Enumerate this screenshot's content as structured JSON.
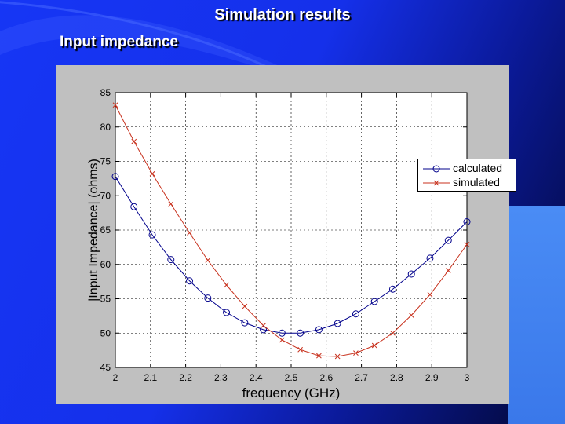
{
  "slide": {
    "title": "Simulation results",
    "subtitle": "Input impedance"
  },
  "colors": {
    "calculated": "#00008b",
    "simulated": "#c8321e",
    "axes_bg": "#ffffff",
    "figure_bg": "#c0c0c0"
  },
  "chart_data": {
    "type": "line",
    "title": "",
    "xlabel": "frequency (GHz)",
    "ylabel": "|Input Impedance| (ohms)",
    "xlim": [
      2,
      3
    ],
    "ylim": [
      45,
      85
    ],
    "xticks": [
      2,
      2.1,
      2.2,
      2.3,
      2.4,
      2.5,
      2.6,
      2.7,
      2.8,
      2.9,
      3
    ],
    "xtick_labels": [
      "2",
      "2.1",
      "2.2",
      "2.3",
      "2.4",
      "2.5",
      "2.6",
      "2.7",
      "2.8",
      "2.9",
      "3"
    ],
    "yticks": [
      45,
      50,
      55,
      60,
      65,
      70,
      75,
      80,
      85
    ],
    "ytick_labels": [
      "45",
      "50",
      "55",
      "60",
      "65",
      "70",
      "75",
      "80",
      "85"
    ],
    "grid": true,
    "legend_position": "top-right",
    "series": [
      {
        "name": "calculated",
        "marker": "circle",
        "x": [
          2,
          2.053,
          2.105,
          2.158,
          2.211,
          2.263,
          2.316,
          2.368,
          2.421,
          2.474,
          2.526,
          2.579,
          2.632,
          2.684,
          2.737,
          2.789,
          2.842,
          2.895,
          2.947,
          3
        ],
        "y": [
          72.8,
          68.4,
          64.3,
          60.7,
          57.6,
          55.1,
          53.0,
          51.5,
          50.5,
          50.0,
          50.0,
          50.5,
          51.4,
          52.8,
          54.6,
          56.4,
          58.6,
          60.9,
          63.5,
          66.2
        ]
      },
      {
        "name": "simulated",
        "marker": "x",
        "x": [
          2,
          2.053,
          2.105,
          2.158,
          2.211,
          2.263,
          2.316,
          2.368,
          2.421,
          2.474,
          2.526,
          2.579,
          2.632,
          2.684,
          2.737,
          2.789,
          2.842,
          2.895,
          2.947,
          3
        ],
        "y": [
          83.2,
          77.9,
          73.2,
          68.8,
          64.6,
          60.6,
          57.0,
          53.9,
          51.1,
          49.0,
          47.6,
          46.7,
          46.6,
          47.1,
          48.2,
          50.0,
          52.6,
          55.6,
          59.1,
          62.9
        ]
      }
    ]
  }
}
